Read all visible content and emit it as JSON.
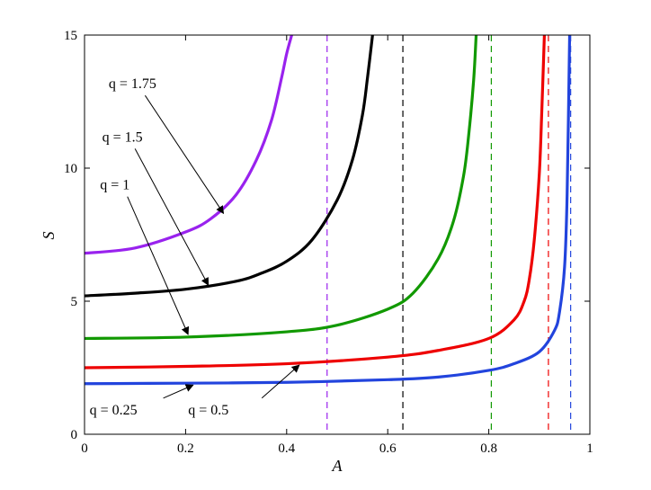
{
  "chart_data": {
    "type": "line",
    "xlabel": "A",
    "ylabel": "S",
    "xlim": [
      0,
      1
    ],
    "ylim": [
      0,
      15
    ],
    "xticks": [
      "0",
      "0.2",
      "0.4",
      "0.6",
      "0.8",
      "1"
    ],
    "yticks": [
      "0",
      "5",
      "10",
      "15"
    ],
    "grid": false,
    "colors": {
      "q_0_25": "#2244dd",
      "q_0_5": "#ee0000",
      "q_1": "#119900",
      "q_1_5": "#000000",
      "q_1_75": "#9922ee"
    },
    "series": [
      {
        "key": "q_1_75",
        "color": "#9922ee",
        "x": [
          0,
          0.1,
          0.2,
          0.25,
          0.3,
          0.34,
          0.37,
          0.39,
          0.4,
          0.41
        ],
        "y": [
          6.8,
          7.0,
          7.6,
          8.1,
          9.0,
          10.3,
          11.8,
          13.4,
          14.3,
          15.0
        ]
      },
      {
        "key": "q_1_5",
        "color": "#000000",
        "x": [
          0,
          0.1,
          0.2,
          0.3,
          0.35,
          0.4,
          0.45,
          0.5,
          0.53,
          0.55,
          0.56,
          0.57
        ],
        "y": [
          5.2,
          5.3,
          5.45,
          5.75,
          6.05,
          6.5,
          7.3,
          8.8,
          10.3,
          12.0,
          13.4,
          15.0
        ]
      },
      {
        "key": "q_1",
        "color": "#119900",
        "x": [
          0,
          0.2,
          0.4,
          0.5,
          0.6,
          0.65,
          0.7,
          0.73,
          0.75,
          0.76,
          0.77,
          0.775
        ],
        "y": [
          3.6,
          3.65,
          3.85,
          4.1,
          4.7,
          5.3,
          6.6,
          8.0,
          9.7,
          11.2,
          13.3,
          15.0
        ]
      },
      {
        "key": "q_0_5",
        "color": "#ee0000",
        "x": [
          0,
          0.2,
          0.4,
          0.6,
          0.7,
          0.8,
          0.85,
          0.87,
          0.88,
          0.89,
          0.9,
          0.905,
          0.91
        ],
        "y": [
          2.5,
          2.55,
          2.65,
          2.9,
          3.15,
          3.6,
          4.3,
          5.0,
          5.8,
          7.3,
          9.8,
          12.2,
          15.0
        ]
      },
      {
        "key": "q_0_25",
        "color": "#2244dd",
        "x": [
          0,
          0.2,
          0.4,
          0.6,
          0.7,
          0.8,
          0.85,
          0.9,
          0.93,
          0.94,
          0.95,
          0.955,
          0.96
        ],
        "y": [
          1.9,
          1.92,
          1.95,
          2.05,
          2.15,
          2.4,
          2.65,
          3.1,
          3.9,
          4.6,
          6.3,
          9.0,
          15.0
        ]
      }
    ],
    "asymptotes": [
      {
        "x": 0.48,
        "color": "#9922ee"
      },
      {
        "x": 0.63,
        "color": "#000000"
      },
      {
        "x": 0.805,
        "color": "#119900"
      },
      {
        "x": 0.918,
        "color": "#ee0000"
      },
      {
        "x": 0.962,
        "color": "#2244dd"
      }
    ],
    "annotations": [
      {
        "text": "q = 1.75",
        "text_x": 0.095,
        "text_y": 13.0,
        "tip_x": 0.275,
        "tip_y": 8.3,
        "anchor": "middle"
      },
      {
        "text": "q = 1.5",
        "text_x": 0.075,
        "text_y": 11.0,
        "tip_x": 0.245,
        "tip_y": 5.6,
        "anchor": "middle"
      },
      {
        "text": "q = 1",
        "text_x": 0.06,
        "text_y": 9.2,
        "tip_x": 0.205,
        "tip_y": 3.75,
        "anchor": "middle"
      },
      {
        "text": "q = 0.25",
        "text_x": 0.01,
        "text_y": 0.75,
        "tip_x": 0.215,
        "tip_y": 1.85,
        "anchor": "start"
      },
      {
        "text": "q = 0.5",
        "text_x": 0.205,
        "text_y": 0.75,
        "tip_x": 0.425,
        "tip_y": 2.6,
        "anchor": "start"
      }
    ]
  }
}
